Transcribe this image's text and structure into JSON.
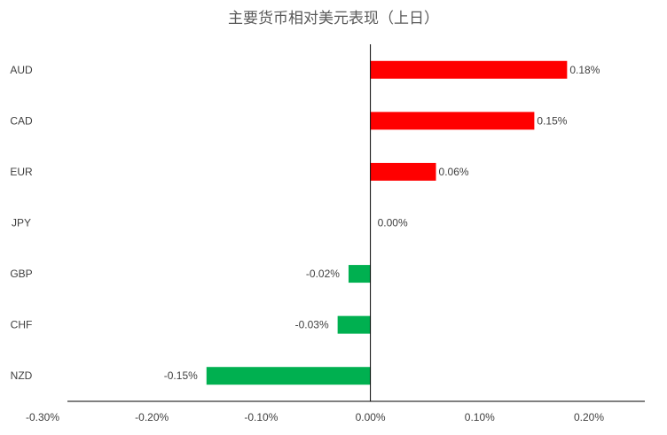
{
  "chart_data": {
    "type": "bar",
    "orientation": "horizontal",
    "title": "主要货币相对美元表现（上日）",
    "categories": [
      "AUD",
      "CAD",
      "EUR",
      "JPY",
      "GBP",
      "CHF",
      "NZD"
    ],
    "values": [
      0.18,
      0.15,
      0.06,
      0.0,
      -0.02,
      -0.03,
      -0.15
    ],
    "data_labels": [
      "0.18%",
      "0.15%",
      "0.06%",
      "0.00%",
      "-0.02%",
      "-0.03%",
      "-0.15%"
    ],
    "xlim": [
      -0.3,
      0.2
    ],
    "x_ticks": [
      -0.3,
      -0.2,
      -0.1,
      0.0,
      0.1,
      0.2
    ],
    "x_tick_labels": [
      "-0.30%",
      "-0.20%",
      "-0.10%",
      "0.00%",
      "0.10%",
      "0.20%"
    ],
    "positive_color": "#ff0000",
    "negative_color": "#00b050",
    "grid": false,
    "legend": "none"
  }
}
